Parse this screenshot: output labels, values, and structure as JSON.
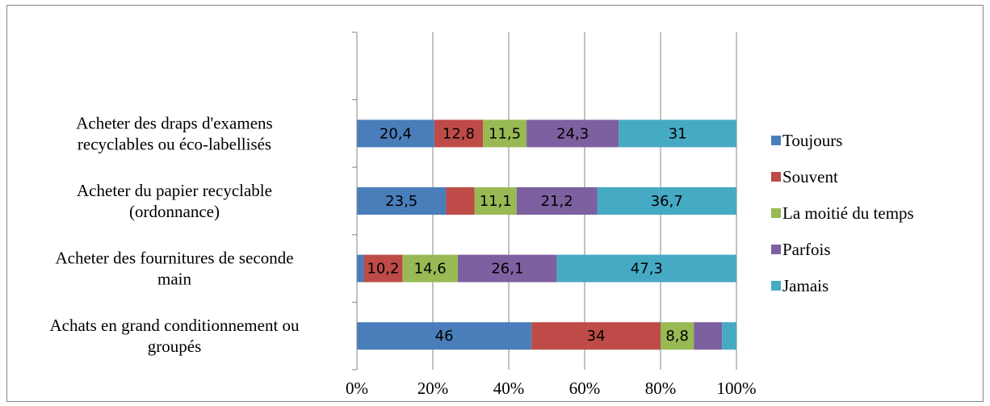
{
  "chart_data": {
    "type": "bar",
    "orientation": "horizontal",
    "stacking": "percent",
    "categories": [
      "Achats en grand conditionnement ou groupés",
      "Acheter des fournitures de seconde main",
      "Acheter du papier recyclable (ordonnance)",
      "Acheter des draps d'examens recyclables ou éco-labellisés"
    ],
    "category_lines": [
      [
        "Achats en grand conditionnement ou",
        "groupés"
      ],
      [
        "Acheter des fournitures de seconde",
        "main"
      ],
      [
        "Acheter du papier recyclable",
        "(ordonnance)"
      ],
      [
        "Acheter des draps d'examens",
        "recyclables ou éco-labellisés"
      ]
    ],
    "series": [
      {
        "name": "Toujours",
        "color": "#4A7EBB",
        "values": [
          46,
          1.8,
          23.5,
          20.4
        ],
        "labels": [
          "46",
          "",
          "23,5",
          "20,4"
        ]
      },
      {
        "name": "Souvent",
        "color": "#BE4B48",
        "values": [
          34,
          10.2,
          7.5,
          12.8
        ],
        "labels": [
          "34",
          "10,2",
          "",
          "12,8"
        ]
      },
      {
        "name": "La moitié du temps",
        "color": "#98B954",
        "values": [
          8.8,
          14.6,
          11.1,
          11.5
        ],
        "labels": [
          "8,8",
          "14,6",
          "11,1",
          "11,5"
        ]
      },
      {
        "name": "Parfois",
        "color": "#7D60A0",
        "values": [
          7.4,
          26.1,
          21.2,
          24.3
        ],
        "labels": [
          "",
          "26,1",
          "21,2",
          "24,3"
        ]
      },
      {
        "name": "Jamais",
        "color": "#46AAC5",
        "values": [
          3.8,
          47.3,
          36.7,
          31
        ],
        "labels": [
          "",
          "47,3",
          "36,7",
          "31"
        ]
      }
    ],
    "xlim": [
      0,
      100
    ],
    "x_ticks": [
      "0%",
      "20%",
      "40%",
      "60%",
      "80%",
      "100%"
    ],
    "grid": true,
    "legend_position": "right"
  }
}
